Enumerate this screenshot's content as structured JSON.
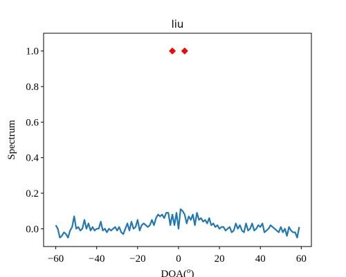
{
  "chart_data": {
    "type": "line",
    "title": "liu",
    "xlabel_parts": [
      "DOA(",
      "o",
      ")"
    ],
    "ylabel": "Spectrum",
    "xlim": [
      -65.95,
      64.95
    ],
    "ylim": [
      -0.1,
      1.1
    ],
    "xticks": [
      {
        "value": -60,
        "label": "−60"
      },
      {
        "value": -40,
        "label": "−40"
      },
      {
        "value": -20,
        "label": "−20"
      },
      0,
      20,
      40,
      60
    ],
    "yticks": [
      {
        "value": 0,
        "label": "0.0"
      },
      {
        "value": 0.2,
        "label": "0.2"
      },
      {
        "value": 0.4,
        "label": "0.4"
      },
      {
        "value": 0.6,
        "label": "0.6"
      },
      {
        "value": 0.8,
        "label": "0.8"
      },
      {
        "value": 1,
        "label": "1.0"
      }
    ],
    "series": [
      {
        "style": "line",
        "color": "#1f77b4",
        "x": [
          -60,
          -59,
          -58,
          -57,
          -56,
          -55,
          -54,
          -53,
          -52,
          -51,
          -50,
          -49,
          -48,
          -47,
          -46,
          -45,
          -44,
          -43,
          -42,
          -41,
          -40,
          -39,
          -38,
          -37,
          -36,
          -35,
          -34,
          -33,
          -32,
          -31,
          -30,
          -29,
          -28,
          -27,
          -26,
          -25,
          -24,
          -23,
          -22,
          -21,
          -20,
          -19,
          -18,
          -17,
          -16,
          -15,
          -14,
          -13,
          -12,
          -11,
          -10,
          -9,
          -8,
          -7,
          -6,
          -5,
          -4,
          -3,
          -2,
          -1,
          0,
          1,
          2,
          3,
          4,
          5,
          6,
          7,
          8,
          9,
          10,
          11,
          12,
          13,
          14,
          15,
          16,
          17,
          18,
          19,
          20,
          21,
          22,
          23,
          24,
          25,
          26,
          27,
          28,
          29,
          30,
          31,
          32,
          33,
          34,
          35,
          36,
          37,
          38,
          39,
          40,
          41,
          42,
          43,
          44,
          45,
          46,
          47,
          48,
          49,
          50,
          51,
          52,
          53,
          54,
          55,
          56,
          57,
          58,
          59
        ],
        "values": [
          0.02,
          0.0,
          -0.05,
          -0.04,
          -0.02,
          -0.03,
          -0.05,
          -0.01,
          0.01,
          0.07,
          0.0,
          0.01,
          -0.01,
          0.0,
          0.05,
          0.0,
          0.03,
          -0.01,
          0.01,
          -0.01,
          0.0,
          0.0,
          0.04,
          -0.01,
          0.0,
          -0.02,
          0.0,
          -0.01,
          0.0,
          0.01,
          -0.01,
          0.01,
          -0.02,
          -0.03,
          0.0,
          0.03,
          -0.01,
          0.04,
          0.0,
          0.01,
          0.05,
          -0.01,
          0.02,
          0.03,
          0.02,
          0.01,
          0.02,
          0.05,
          0.02,
          0.06,
          0.08,
          0.07,
          0.08,
          0.06,
          0.09,
          0.09,
          0.02,
          0.08,
          0.02,
          0.09,
          0.0,
          0.11,
          0.1,
          0.08,
          0.03,
          0.07,
          0.05,
          0.08,
          0.02,
          0.09,
          0.05,
          0.06,
          0.04,
          0.05,
          0.03,
          0.06,
          0.02,
          0.03,
          0.01,
          0.02,
          0.0,
          0.01,
          0.01,
          -0.01,
          0.0,
          0.01,
          -0.02,
          -0.01,
          0.03,
          0.0,
          0.02,
          -0.01,
          -0.02,
          0.03,
          -0.01,
          0.0,
          0.03,
          -0.01,
          0.0,
          0.02,
          0.01,
          0.03,
          -0.02,
          -0.01,
          0.0,
          0.02,
          0.01,
          0.0,
          -0.01,
          -0.02,
          0.01,
          -0.02,
          0.0,
          -0.04,
          0.01,
          -0.01,
          -0.02,
          -0.02,
          -0.05,
          0.01
        ]
      },
      {
        "style": "markers",
        "color": "#ff0000",
        "x": [
          -3,
          3
        ],
        "values": [
          1,
          1
        ]
      }
    ]
  }
}
